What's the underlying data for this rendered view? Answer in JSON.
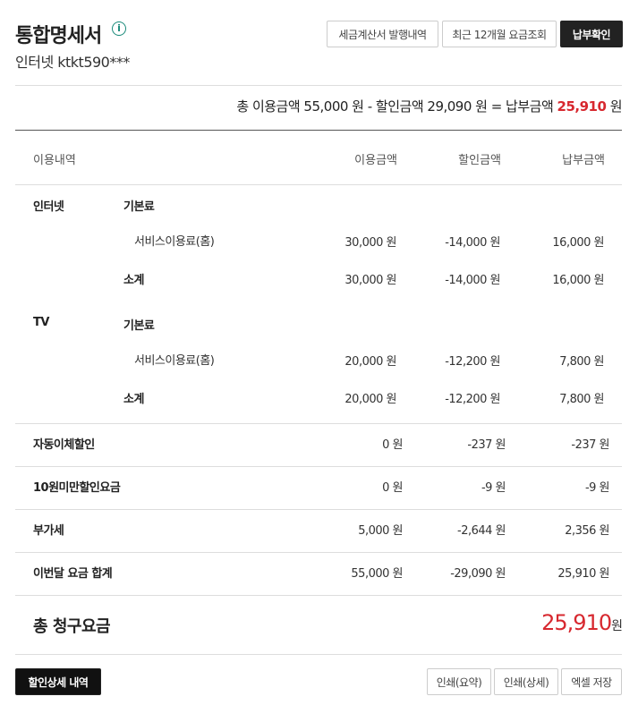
{
  "header": {
    "title": "통합명세서",
    "info_icon": "info-circle-icon",
    "subtitle": "인터넷 ktkt590***"
  },
  "top_buttons": {
    "tax": "세금계산서 발행내역",
    "recent": "최근 12개월 요금조회",
    "confirm": "납부확인"
  },
  "summary": {
    "prefix": "총 이용금액 55,000 원 - 할인금액 29,090 원 = 납부금액 ",
    "amount": "25,910",
    "unit": " 원",
    "accent": "#d7282f"
  },
  "table": {
    "headers": [
      "이용내역",
      "이용금액",
      "할인금액",
      "납부금액"
    ],
    "sections": [
      {
        "name": "인터넷",
        "group": "기본료",
        "item": "서비스이용료(홈)",
        "item_vals": [
          "30,000 원",
          "-14,000 원",
          "16,000 원"
        ],
        "subtotal_label": "소계",
        "subtotal_vals": [
          "30,000 원",
          "-14,000 원",
          "16,000 원"
        ]
      },
      {
        "name": "TV",
        "group": "기본료",
        "item": "서비스이용료(홈)",
        "item_vals": [
          "20,000 원",
          "-12,200 원",
          "7,800 원"
        ],
        "subtotal_label": "소계",
        "subtotal_vals": [
          "20,000 원",
          "-12,200 원",
          "7,800 원"
        ]
      }
    ],
    "rows": [
      {
        "label": "자동이체할인",
        "vals": [
          "0 원",
          "-237 원",
          "-237 원"
        ]
      },
      {
        "label": "10원미만할인요금",
        "vals": [
          "0 원",
          "-9 원",
          "-9 원"
        ]
      },
      {
        "label": "부가세",
        "vals": [
          "5,000 원",
          "-2,644 원",
          "2,356 원"
        ]
      },
      {
        "label": "이번달 요금 합계",
        "vals": [
          "55,000 원",
          "-29,090 원",
          "25,910 원"
        ]
      }
    ]
  },
  "total": {
    "label": "총 청구요금",
    "amount": "25,910",
    "unit": "원"
  },
  "bottom_buttons": {
    "discount_detail": "할인상세 내역",
    "print_summary": "인쇄(요약)",
    "print_detail": "인쇄(상세)",
    "excel": "엑셀 저장"
  }
}
